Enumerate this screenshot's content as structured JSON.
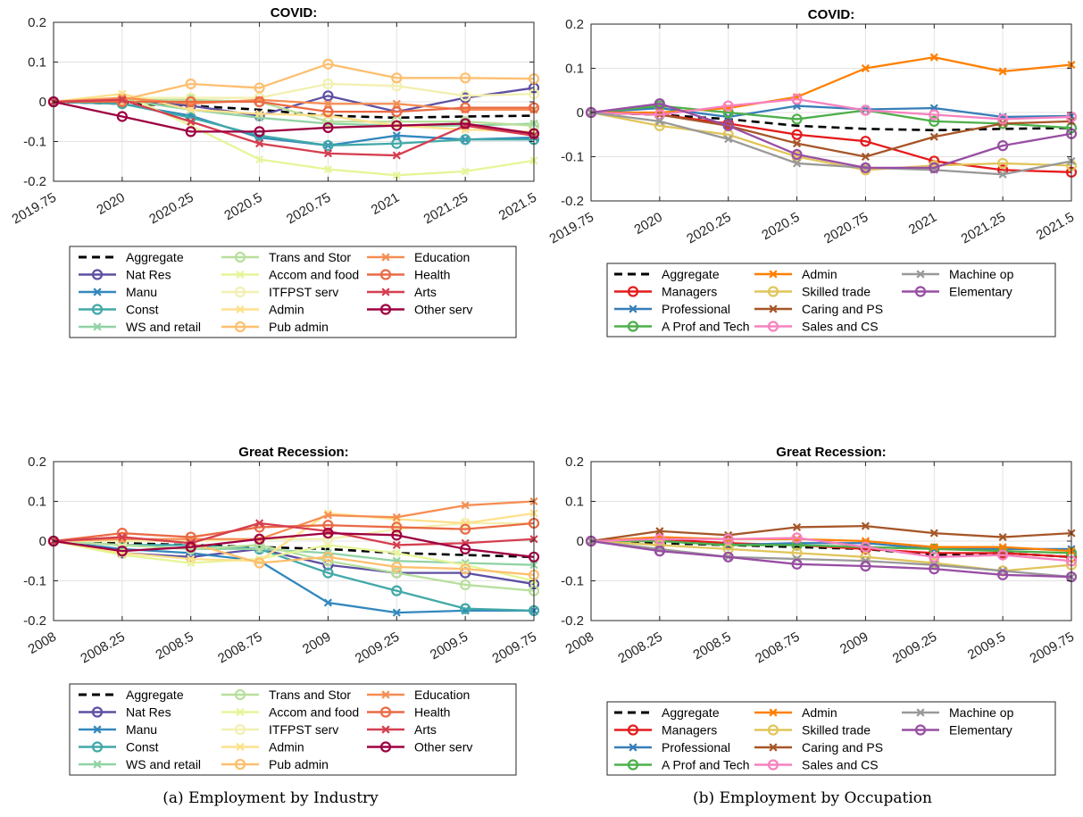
{
  "captions": {
    "a": "(a) Employment by Industry",
    "b": "(b) Employment by Occupation"
  },
  "series_styles": {
    "industry": [
      {
        "name": "Aggregate",
        "color": "#000000",
        "marker": "none",
        "dash": true
      },
      {
        "name": "Nat Res",
        "color": "#5e4fa2",
        "marker": "o"
      },
      {
        "name": "Manu",
        "color": "#3288bd",
        "marker": "x"
      },
      {
        "name": "Const",
        "color": "#41a8a8",
        "marker": "o"
      },
      {
        "name": "WS and retail",
        "color": "#90d3a4",
        "marker": "x"
      },
      {
        "name": "Trans and Stor",
        "color": "#b8df9c",
        "marker": "o"
      },
      {
        "name": "Accom and food",
        "color": "#e6f598",
        "marker": "x"
      },
      {
        "name": "ITFPST serv",
        "color": "#f2f0b0",
        "marker": "o"
      },
      {
        "name": "Admin",
        "color": "#fee08b",
        "marker": "x"
      },
      {
        "name": "Pub admin",
        "color": "#fdbf6f",
        "marker": "o"
      },
      {
        "name": "Education",
        "color": "#f68d52",
        "marker": "x"
      },
      {
        "name": "Health",
        "color": "#ea6a45",
        "marker": "o"
      },
      {
        "name": "Arts",
        "color": "#d53e4f",
        "marker": "x"
      },
      {
        "name": "Other serv",
        "color": "#9e0142",
        "marker": "o"
      }
    ],
    "occupation": [
      {
        "name": "Aggregate",
        "color": "#000000",
        "marker": "none",
        "dash": true
      },
      {
        "name": "Managers",
        "color": "#e41a1c",
        "marker": "o"
      },
      {
        "name": "Professional",
        "color": "#377eb8",
        "marker": "x"
      },
      {
        "name": "A Prof and Tech",
        "color": "#4daf4a",
        "marker": "o"
      },
      {
        "name": "Admin",
        "color": "#ff7f00",
        "marker": "x"
      },
      {
        "name": "Skilled trade",
        "color": "#e0c55a",
        "marker": "o"
      },
      {
        "name": "Caring and PS",
        "color": "#a65628",
        "marker": "x"
      },
      {
        "name": "Sales and CS",
        "color": "#f781bf",
        "marker": "o"
      },
      {
        "name": "Machine op",
        "color": "#999999",
        "marker": "x"
      },
      {
        "name": "Elementary",
        "color": "#984ea3",
        "marker": "o"
      }
    ]
  },
  "chart_data": [
    {
      "type": "line",
      "title": "COVID:",
      "group": "industry",
      "x": [
        2019.75,
        2020,
        2020.25,
        2020.5,
        2020.75,
        2021,
        2021.25,
        2021.5
      ],
      "xtick_labels": [
        "2019.75",
        "2020",
        "2020.25",
        "2020.5",
        "2020.75",
        "2021",
        "2021.25",
        "2021.5"
      ],
      "ylim": [
        -0.2,
        0.2
      ],
      "yticks": [
        -0.2,
        -0.1,
        0,
        0.1,
        0.2
      ],
      "ytick_labels": [
        "-0.2",
        "-0.1",
        "0",
        "0.1",
        "0.2"
      ],
      "grid": true,
      "legend_position": "below",
      "series": [
        {
          "name": "Aggregate",
          "values": [
            0,
            -0.005,
            -0.01,
            -0.02,
            -0.035,
            -0.04,
            -0.037,
            -0.035
          ]
        },
        {
          "name": "Nat Res",
          "values": [
            0,
            0.005,
            -0.01,
            -0.035,
            0.015,
            -0.025,
            0.01,
            0.035
          ]
        },
        {
          "name": "Manu",
          "values": [
            0,
            -0.005,
            -0.035,
            -0.09,
            -0.11,
            -0.085,
            -0.095,
            -0.09
          ]
        },
        {
          "name": "Const",
          "values": [
            0,
            -0.005,
            -0.04,
            -0.085,
            -0.11,
            -0.105,
            -0.095,
            -0.095
          ]
        },
        {
          "name": "WS and retail",
          "values": [
            0,
            0.005,
            -0.02,
            -0.04,
            -0.055,
            -0.06,
            -0.06,
            -0.055
          ]
        },
        {
          "name": "Trans and Stor",
          "values": [
            0,
            0.005,
            0.005,
            0,
            -0.05,
            -0.05,
            -0.05,
            -0.06
          ]
        },
        {
          "name": "Accom and food",
          "values": [
            0,
            0.02,
            -0.06,
            -0.145,
            -0.17,
            -0.185,
            -0.175,
            -0.148
          ]
        },
        {
          "name": "ITFPST serv",
          "values": [
            0,
            0.01,
            0.01,
            0.01,
            0.045,
            0.04,
            0.015,
            0.02
          ]
        },
        {
          "name": "Admin",
          "values": [
            0,
            0.02,
            -0.02,
            -0.03,
            -0.035,
            -0.06,
            -0.07,
            -0.075
          ]
        },
        {
          "name": "Pub admin",
          "values": [
            0,
            0.005,
            0.045,
            0.035,
            0.095,
            0.06,
            0.06,
            0.058
          ]
        },
        {
          "name": "Education",
          "values": [
            0,
            0.01,
            -0.005,
            0.005,
            -0.005,
            -0.005,
            -0.02,
            -0.02
          ]
        },
        {
          "name": "Health",
          "values": [
            0,
            0,
            0,
            0,
            -0.025,
            -0.025,
            -0.015,
            -0.015
          ]
        },
        {
          "name": "Arts",
          "values": [
            0,
            0.005,
            -0.05,
            -0.105,
            -0.13,
            -0.135,
            -0.06,
            -0.085
          ]
        },
        {
          "name": "Other serv",
          "values": [
            0,
            -0.037,
            -0.075,
            -0.075,
            -0.065,
            -0.06,
            -0.055,
            -0.08
          ]
        }
      ]
    },
    {
      "type": "line",
      "title": "COVID:",
      "group": "occupation",
      "x": [
        2019.75,
        2020,
        2020.25,
        2020.5,
        2020.75,
        2021,
        2021.25,
        2021.5
      ],
      "xtick_labels": [
        "2019.75",
        "2020",
        "2020.25",
        "2020.5",
        "2020.75",
        "2021",
        "2021.25",
        "2021.5"
      ],
      "ylim": [
        -0.2,
        0.2
      ],
      "yticks": [
        -0.2,
        -0.1,
        0,
        0.1,
        0.2
      ],
      "ytick_labels": [
        "-0.2",
        "-0.1",
        "0",
        "0.1",
        "0.2"
      ],
      "grid": true,
      "legend_position": "below",
      "series": [
        {
          "name": "Aggregate",
          "values": [
            0,
            -0.005,
            -0.015,
            -0.03,
            -0.037,
            -0.04,
            -0.037,
            -0.035
          ]
        },
        {
          "name": "Managers",
          "values": [
            0,
            -0.005,
            -0.025,
            -0.05,
            -0.065,
            -0.11,
            -0.13,
            -0.135
          ]
        },
        {
          "name": "Professional",
          "values": [
            0,
            0.01,
            -0.01,
            0.015,
            0.007,
            0.01,
            -0.01,
            -0.008
          ]
        },
        {
          "name": "A Prof and Tech",
          "values": [
            0,
            0.015,
            0,
            -0.015,
            0.005,
            -0.02,
            -0.025,
            -0.035
          ]
        },
        {
          "name": "Admin",
          "values": [
            0,
            0,
            0.01,
            0.035,
            0.1,
            0.125,
            0.093,
            0.108
          ]
        },
        {
          "name": "Skilled trade",
          "values": [
            0,
            -0.03,
            -0.05,
            -0.1,
            -0.13,
            -0.12,
            -0.115,
            -0.12
          ]
        },
        {
          "name": "Caring and PS",
          "values": [
            0,
            -0.005,
            -0.03,
            -0.07,
            -0.1,
            -0.055,
            -0.025,
            -0.02
          ]
        },
        {
          "name": "Sales and CS",
          "values": [
            0,
            -0.005,
            0.015,
            0.03,
            0.005,
            -0.005,
            -0.015,
            -0.01
          ]
        },
        {
          "name": "Machine op",
          "values": [
            0,
            -0.02,
            -0.06,
            -0.115,
            -0.125,
            -0.13,
            -0.14,
            -0.11
          ]
        },
        {
          "name": "Elementary",
          "values": [
            0,
            0.02,
            -0.03,
            -0.095,
            -0.125,
            -0.125,
            -0.075,
            -0.048
          ]
        }
      ]
    },
    {
      "type": "line",
      "title": "Great Recession:",
      "group": "industry",
      "x": [
        2008,
        2008.25,
        2008.5,
        2008.75,
        2009,
        2009.25,
        2009.5,
        2009.75
      ],
      "xtick_labels": [
        "2008",
        "2008.25",
        "2008.5",
        "2008.75",
        "2009",
        "2009.25",
        "2009.5",
        "2009.75"
      ],
      "ylim": [
        -0.2,
        0.2
      ],
      "yticks": [
        -0.2,
        -0.1,
        0,
        0.1,
        0.2
      ],
      "ytick_labels": [
        "-0.2",
        "-0.1",
        "0",
        "0.1",
        "0.2"
      ],
      "grid": true,
      "legend_position": "below",
      "series": [
        {
          "name": "Aggregate",
          "values": [
            0,
            -0.005,
            -0.01,
            -0.015,
            -0.02,
            -0.03,
            -0.035,
            -0.04
          ]
        },
        {
          "name": "Nat Res",
          "values": [
            0,
            -0.03,
            -0.04,
            -0.02,
            -0.06,
            -0.08,
            -0.08,
            -0.108
          ]
        },
        {
          "name": "Manu",
          "values": [
            0,
            -0.02,
            -0.03,
            -0.05,
            -0.155,
            -0.18,
            -0.175,
            -0.175
          ]
        },
        {
          "name": "Const",
          "values": [
            0,
            -0.01,
            -0.01,
            -0.02,
            -0.08,
            -0.125,
            -0.17,
            -0.175
          ]
        },
        {
          "name": "WS and retail",
          "values": [
            0,
            -0.01,
            -0.02,
            -0.02,
            -0.03,
            -0.05,
            -0.055,
            -0.06
          ]
        },
        {
          "name": "Trans and Stor",
          "values": [
            0,
            -0.01,
            -0.02,
            -0.01,
            -0.05,
            -0.08,
            -0.11,
            -0.125
          ]
        },
        {
          "name": "Accom and food",
          "values": [
            0,
            -0.035,
            -0.055,
            -0.045,
            -0.01,
            -0.03,
            -0.06,
            -0.1
          ]
        },
        {
          "name": "ITFPST serv",
          "values": [
            0,
            0,
            0,
            0.005,
            0.005,
            0.03,
            0.045,
            0.045
          ]
        },
        {
          "name": "Admin",
          "values": [
            0,
            -0.03,
            -0.045,
            -0.05,
            0.07,
            0.055,
            0.045,
            0.07
          ]
        },
        {
          "name": "Pub admin",
          "values": [
            0,
            0.01,
            -0.005,
            -0.055,
            -0.04,
            -0.065,
            -0.07,
            -0.085
          ]
        },
        {
          "name": "Education",
          "values": [
            0,
            0.005,
            0.005,
            0.005,
            0.065,
            0.06,
            0.09,
            0.1
          ]
        },
        {
          "name": "Health",
          "values": [
            0,
            0.02,
            0.01,
            0.035,
            0.04,
            0.035,
            0.03,
            0.045
          ]
        },
        {
          "name": "Arts",
          "values": [
            0,
            0.01,
            -0.005,
            0.045,
            0.025,
            -0.01,
            -0.005,
            0.005
          ]
        },
        {
          "name": "Other serv",
          "values": [
            0,
            -0.025,
            -0.015,
            0.005,
            0.02,
            0.015,
            -0.02,
            -0.04
          ]
        }
      ]
    },
    {
      "type": "line",
      "title": "Great Recession:",
      "group": "occupation",
      "x": [
        2008,
        2008.25,
        2008.5,
        2008.75,
        2009,
        2009.25,
        2009.5,
        2009.75
      ],
      "xtick_labels": [
        "2008",
        "2008.25",
        "2008.5",
        "2008.75",
        "2009",
        "2009.25",
        "2009.5",
        "2009.75"
      ],
      "ylim": [
        -0.2,
        0.2
      ],
      "yticks": [
        -0.2,
        -0.1,
        0,
        0.1,
        0.2
      ],
      "ytick_labels": [
        "-0.2",
        "-0.1",
        "0",
        "0.1",
        "0.2"
      ],
      "grid": true,
      "legend_position": "below",
      "series": [
        {
          "name": "Aggregate",
          "values": [
            0,
            -0.005,
            -0.01,
            -0.015,
            -0.02,
            -0.035,
            -0.03,
            -0.04
          ]
        },
        {
          "name": "Managers",
          "values": [
            0,
            0.005,
            -0.005,
            -0.01,
            -0.02,
            -0.03,
            -0.03,
            -0.04
          ]
        },
        {
          "name": "Professional",
          "values": [
            0,
            0,
            -0.01,
            -0.005,
            -0.005,
            -0.02,
            -0.02,
            -0.02
          ]
        },
        {
          "name": "A Prof and Tech",
          "values": [
            0,
            0,
            -0.01,
            -0.01,
            -0.015,
            -0.02,
            -0.025,
            -0.03
          ]
        },
        {
          "name": "Admin",
          "values": [
            0,
            0.01,
            0.005,
            0.005,
            0,
            -0.015,
            -0.015,
            -0.025
          ]
        },
        {
          "name": "Skilled trade",
          "values": [
            0,
            -0.01,
            -0.02,
            -0.03,
            -0.04,
            -0.055,
            -0.075,
            -0.06
          ]
        },
        {
          "name": "Caring and PS",
          "values": [
            0,
            0.025,
            0.015,
            0.035,
            0.038,
            0.02,
            0.01,
            0.02
          ]
        },
        {
          "name": "Sales and CS",
          "values": [
            0,
            0.005,
            0.005,
            0.008,
            -0.015,
            -0.04,
            -0.035,
            -0.05
          ]
        },
        {
          "name": "Machine op",
          "values": [
            0,
            -0.02,
            -0.04,
            -0.045,
            -0.05,
            -0.06,
            -0.075,
            -0.09
          ]
        },
        {
          "name": "Elementary",
          "values": [
            0,
            -0.025,
            -0.04,
            -0.058,
            -0.063,
            -0.07,
            -0.085,
            -0.09
          ]
        }
      ]
    }
  ]
}
